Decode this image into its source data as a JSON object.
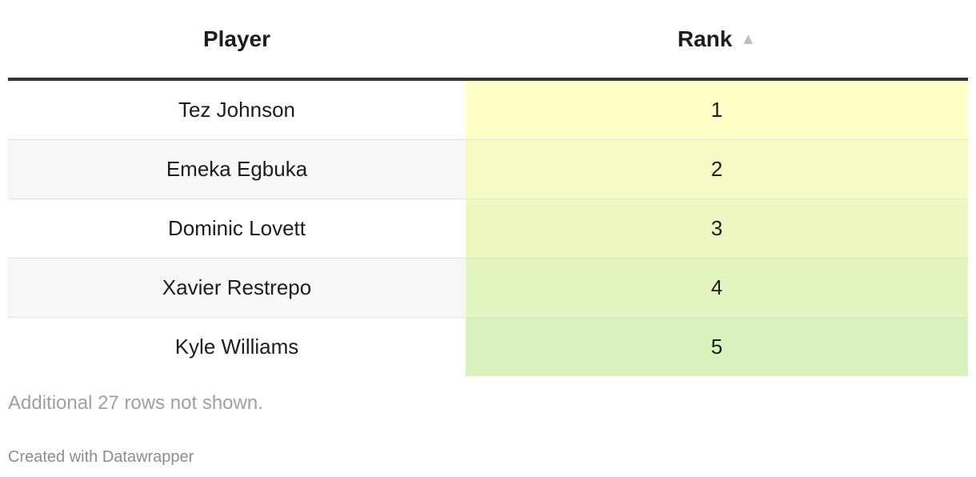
{
  "chart_data": {
    "type": "table",
    "columns": [
      "Player",
      "Rank"
    ],
    "sorted_column": "Rank",
    "sort_direction": "ascending",
    "rows": [
      {
        "player": "Tez Johnson",
        "rank": 1
      },
      {
        "player": "Emeka Egbuka",
        "rank": 2
      },
      {
        "player": "Dominic Lovett",
        "rank": 3
      },
      {
        "player": "Xavier Restrepo",
        "rank": 4
      },
      {
        "player": "Kyle Williams",
        "rank": 5
      }
    ],
    "rank_color_scale": [
      "#ffffc8",
      "#f6fbc6",
      "#eef8c3",
      "#e4f5c1",
      "#d9f1bd"
    ],
    "notes": "Additional 27 rows not shown.",
    "credit": "Created with Datawrapper"
  },
  "icons": {
    "sort_indicator": "sort-ascending-icon"
  }
}
